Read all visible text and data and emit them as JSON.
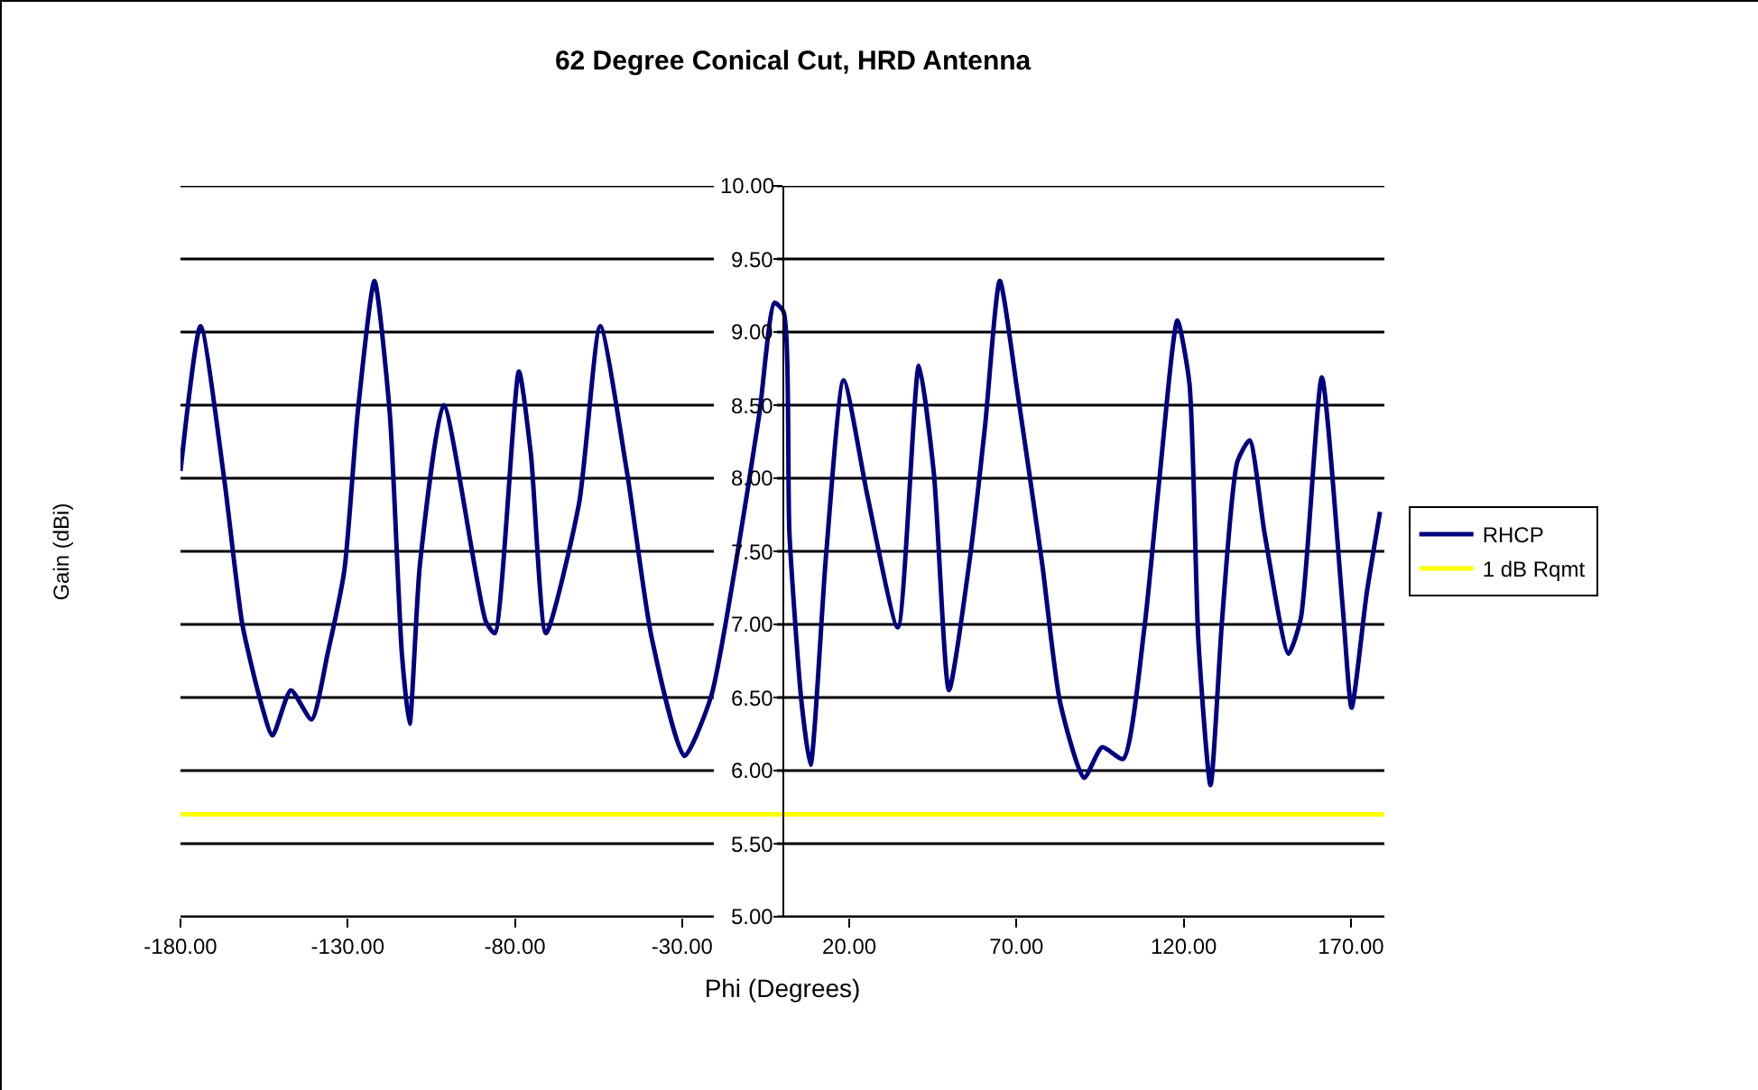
{
  "chart_data": {
    "type": "line",
    "title": "62 Degree Conical Cut, HRD Antenna",
    "xlabel": "Phi (Degrees)",
    "ylabel": "Gain (dBi)",
    "x": [
      -180,
      -174,
      -166.9,
      -161.5,
      -156,
      -152.5,
      -147,
      -140.8,
      -136,
      -131,
      -127,
      -122,
      -117.4,
      -113.8,
      -111.5,
      -108.4,
      -101.3,
      -88.7,
      -86,
      -78.8,
      -75.2,
      -70.7,
      -60.8,
      -54.5,
      -46.4,
      -39.2,
      -29.3,
      -21.3,
      -14,
      -6.9,
      -2.4,
      0.3,
      2.1,
      5.7,
      8.4,
      13,
      18.3,
      25.5,
      34.5,
      40.8,
      45.3,
      49.8,
      56.1,
      60.6,
      65,
      70.4,
      77.7,
      83,
      90.2,
      95.6,
      101.9,
      108.2,
      112.7,
      118.1,
      121.7,
      124.4,
      128,
      131.5,
      136,
      139.7,
      144.2,
      151.3,
      155,
      161.3,
      167.5,
      170.2,
      174.7,
      178.7
    ],
    "series": [
      {
        "name": "RHCP",
        "color": "#000080",
        "values": [
          8.05,
          9.04,
          7.99,
          7.0,
          6.47,
          6.24,
          6.55,
          6.35,
          6.8,
          7.37,
          8.45,
          9.35,
          8.44,
          6.8,
          6.32,
          7.41,
          8.5,
          7.02,
          6.94,
          8.73,
          8.16,
          6.94,
          7.83,
          9.04,
          8.03,
          6.92,
          6.1,
          6.51,
          7.41,
          8.44,
          9.2,
          9.14,
          7.62,
          6.47,
          6.04,
          7.46,
          8.67,
          7.87,
          6.98,
          8.77,
          8.03,
          6.55,
          7.46,
          8.36,
          9.35,
          8.57,
          7.41,
          6.47,
          5.95,
          6.16,
          6.08,
          6.97,
          7.99,
          9.08,
          8.65,
          6.88,
          5.9,
          7.04,
          8.11,
          8.26,
          7.62,
          6.8,
          7.04,
          8.69,
          7.13,
          6.43,
          7.21,
          7.77
        ]
      },
      {
        "name": "1 dB Rqmt",
        "color": "#ffff00",
        "x": [
          -180,
          180
        ],
        "values": [
          5.7,
          5.7
        ]
      }
    ],
    "xlim": [
      -180,
      180
    ],
    "xticks": [
      {
        "value": -180,
        "label": "-180.00"
      },
      {
        "value": -130,
        "label": "-130.00"
      },
      {
        "value": -80,
        "label": "-80.00"
      },
      {
        "value": -30,
        "label": "-30.00"
      },
      {
        "value": 20,
        "label": "20.00"
      },
      {
        "value": 70,
        "label": "70.00"
      },
      {
        "value": 120,
        "label": "120.00"
      },
      {
        "value": 170,
        "label": "170.00"
      }
    ],
    "ylim": [
      5,
      10
    ],
    "yticks": [
      {
        "value": 5,
        "label": "5.00"
      },
      {
        "value": 5.5,
        "label": "5.50"
      },
      {
        "value": 6,
        "label": "6.00"
      },
      {
        "value": 6.5,
        "label": "6.50"
      },
      {
        "value": 7,
        "label": "7.00"
      },
      {
        "value": 7.5,
        "label": "7.50"
      },
      {
        "value": 8,
        "label": "8.00"
      },
      {
        "value": 8.5,
        "label": "8.50"
      },
      {
        "value": 9,
        "label": "9.00"
      },
      {
        "value": 9.5,
        "label": "9.50"
      },
      {
        "value": 10,
        "label": "10.00"
      }
    ],
    "grid": "y",
    "legend": "right",
    "marker": "none",
    "line_style": "solid"
  }
}
